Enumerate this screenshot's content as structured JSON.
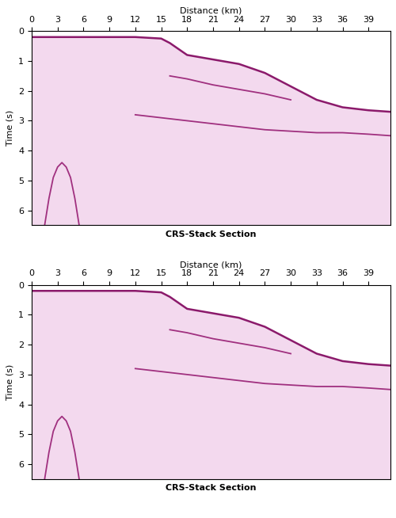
{
  "chart_data": [
    {
      "type": "line",
      "title": "CRS-Stack Section",
      "x_label": "Distance (km)",
      "y_label": "Time (s)",
      "xlim": [
        0,
        41.5
      ],
      "ylim": [
        6.5,
        0
      ],
      "xticks": [
        0,
        3,
        6,
        9,
        12,
        15,
        18,
        21,
        24,
        27,
        30,
        33,
        36,
        39
      ],
      "yticks": [
        0,
        1,
        2,
        3,
        4,
        5,
        6
      ],
      "series": [
        {
          "type": "area",
          "color": "#8b1a6b",
          "x": [
            0,
            3,
            6,
            9,
            12,
            15,
            16,
            18,
            21,
            24,
            27,
            30,
            33,
            36,
            39,
            41.5
          ],
          "values": [
            0.2,
            0.2,
            0.2,
            0.2,
            0.2,
            0.25,
            0.4,
            0.8,
            0.95,
            1.1,
            1.4,
            1.85,
            2.3,
            2.55,
            2.65,
            2.7
          ]
        },
        {
          "type": "line",
          "color": "#a0307f",
          "x": [
            16,
            18,
            21,
            24,
            27,
            30
          ],
          "values": [
            1.5,
            1.6,
            1.8,
            1.95,
            2.1,
            2.3
          ]
        },
        {
          "type": "line",
          "color": "#a0307f",
          "x": [
            12,
            15,
            18,
            21,
            24,
            27,
            30,
            33,
            36,
            39,
            41.5
          ],
          "values": [
            2.8,
            2.9,
            3.0,
            3.1,
            3.2,
            3.3,
            3.35,
            3.4,
            3.4,
            3.45,
            3.5
          ]
        },
        {
          "type": "line",
          "color": "#a0307f",
          "x": [
            1.5,
            2,
            2.5,
            3,
            3.5,
            4,
            4.5,
            5,
            5.5
          ],
          "values": [
            6.5,
            5.6,
            4.9,
            4.55,
            4.4,
            4.55,
            4.9,
            5.6,
            6.5
          ]
        }
      ]
    },
    {
      "type": "line",
      "title": "CRS-Stack Section",
      "x_label": "Distance (km)",
      "y_label": "Time (s)",
      "xlim": [
        0,
        41.5
      ],
      "ylim": [
        6.5,
        0
      ],
      "xticks": [
        0,
        3,
        6,
        9,
        12,
        15,
        18,
        21,
        24,
        27,
        30,
        33,
        36,
        39
      ],
      "yticks": [
        0,
        1,
        2,
        3,
        4,
        5,
        6
      ],
      "series": [
        {
          "type": "area",
          "color": "#8b1a6b",
          "x": [
            0,
            3,
            6,
            9,
            12,
            15,
            16,
            18,
            21,
            24,
            27,
            30,
            33,
            36,
            39,
            41.5
          ],
          "values": [
            0.2,
            0.2,
            0.2,
            0.2,
            0.2,
            0.25,
            0.4,
            0.8,
            0.95,
            1.1,
            1.4,
            1.85,
            2.3,
            2.55,
            2.65,
            2.7
          ]
        },
        {
          "type": "line",
          "color": "#a0307f",
          "x": [
            16,
            18,
            21,
            24,
            27,
            30
          ],
          "values": [
            1.5,
            1.6,
            1.8,
            1.95,
            2.1,
            2.3
          ]
        },
        {
          "type": "line",
          "color": "#a0307f",
          "x": [
            12,
            15,
            18,
            21,
            24,
            27,
            30,
            33,
            36,
            39,
            41.5
          ],
          "values": [
            2.8,
            2.9,
            3.0,
            3.1,
            3.2,
            3.3,
            3.35,
            3.4,
            3.4,
            3.45,
            3.5
          ]
        },
        {
          "type": "line",
          "color": "#a0307f",
          "x": [
            1.5,
            2,
            2.5,
            3,
            3.5,
            4,
            4.5,
            5,
            5.5
          ],
          "values": [
            6.5,
            5.6,
            4.9,
            4.55,
            4.4,
            4.55,
            4.9,
            5.6,
            6.5
          ]
        }
      ]
    }
  ]
}
